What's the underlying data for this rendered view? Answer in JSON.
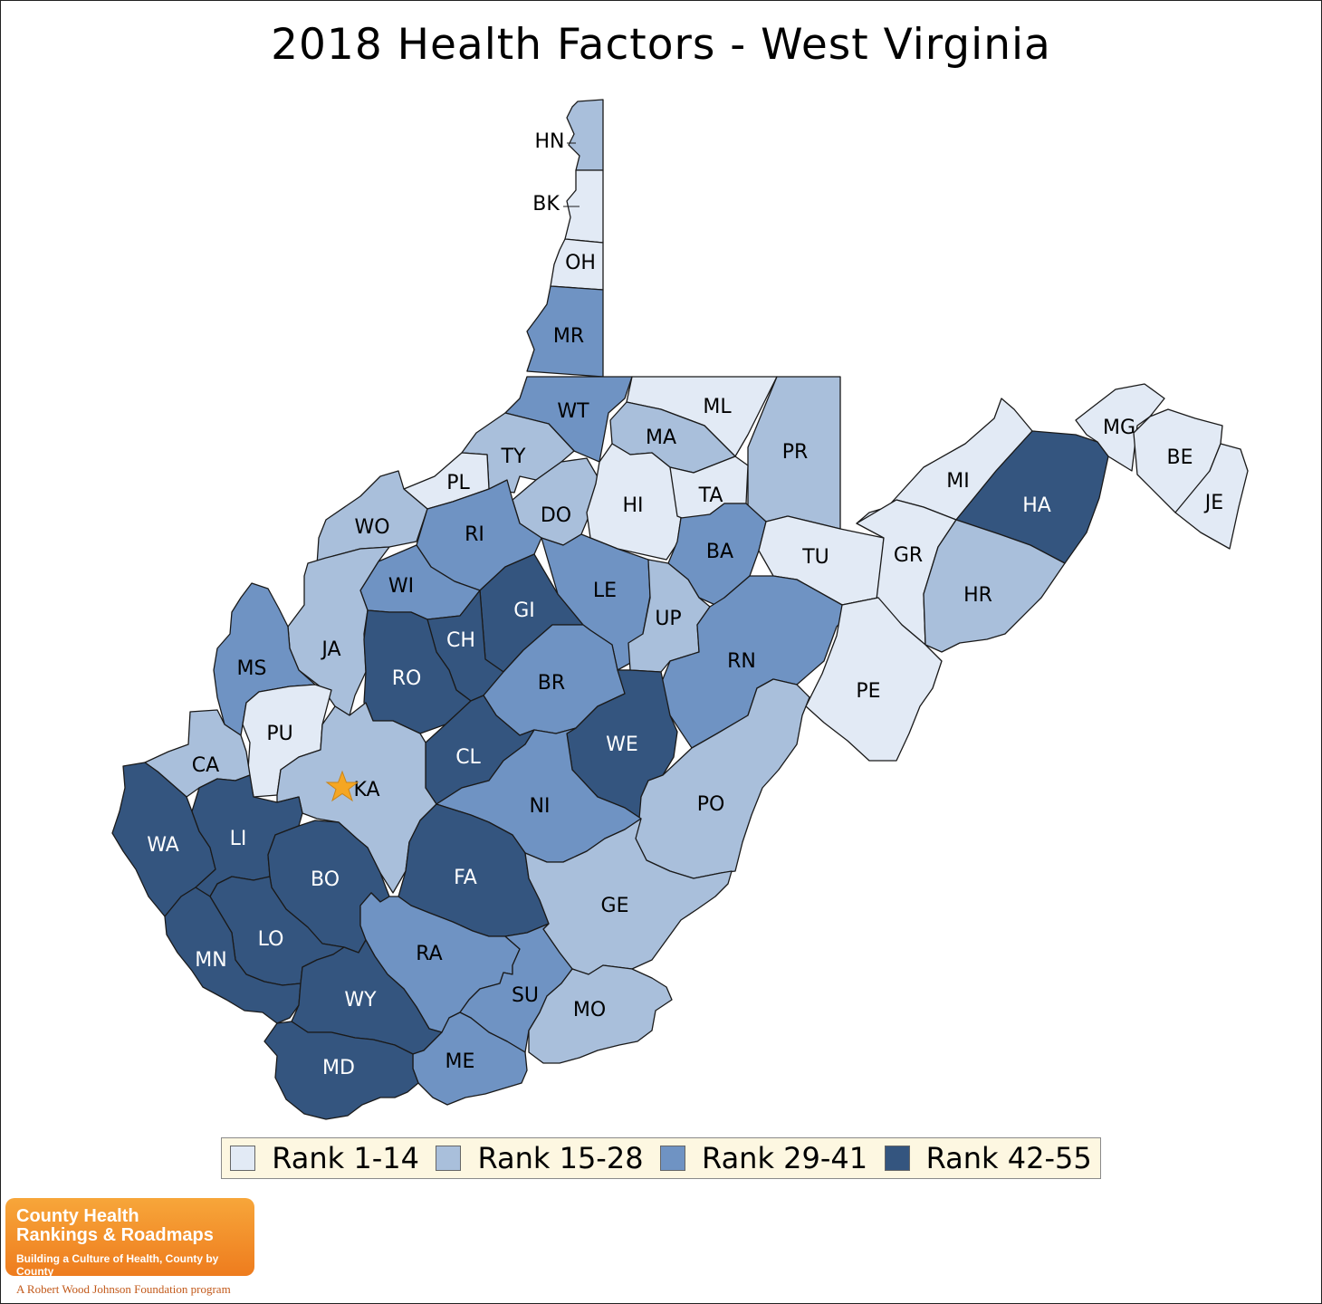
{
  "title": "2018 Health Factors - West Virginia",
  "colors": {
    "rank_1_14": "#e2eaf5",
    "rank_15_28": "#a9bfdb",
    "rank_29_41": "#6f93c3",
    "rank_42_55": "#34557f",
    "star": "#f5a623",
    "legend_bg": "#fdf7e1"
  },
  "legend": [
    {
      "label": "Rank 1-14",
      "class": "rank_1_14"
    },
    {
      "label": "Rank 15-28",
      "class": "rank_15_28"
    },
    {
      "label": "Rank 29-41",
      "class": "rank_29_41"
    },
    {
      "label": "Rank 42-55",
      "class": "rank_42_55"
    }
  ],
  "counties": [
    {
      "abbr": "HN",
      "rank_class": "rank_15_28"
    },
    {
      "abbr": "BK",
      "rank_class": "rank_1_14"
    },
    {
      "abbr": "OH",
      "rank_class": "rank_1_14"
    },
    {
      "abbr": "MR",
      "rank_class": "rank_29_41"
    },
    {
      "abbr": "WT",
      "rank_class": "rank_29_41"
    },
    {
      "abbr": "ML",
      "rank_class": "rank_1_14"
    },
    {
      "abbr": "MA",
      "rank_class": "rank_15_28"
    },
    {
      "abbr": "PR",
      "rank_class": "rank_15_28"
    },
    {
      "abbr": "TY",
      "rank_class": "rank_15_28"
    },
    {
      "abbr": "PL",
      "rank_class": "rank_1_14"
    },
    {
      "abbr": "DO",
      "rank_class": "rank_15_28"
    },
    {
      "abbr": "HI",
      "rank_class": "rank_1_14"
    },
    {
      "abbr": "TA",
      "rank_class": "rank_1_14"
    },
    {
      "abbr": "MG",
      "rank_class": "rank_1_14"
    },
    {
      "abbr": "BE",
      "rank_class": "rank_1_14"
    },
    {
      "abbr": "JE",
      "rank_class": "rank_1_14"
    },
    {
      "abbr": "MI",
      "rank_class": "rank_1_14"
    },
    {
      "abbr": "HA",
      "rank_class": "rank_42_55"
    },
    {
      "abbr": "WO",
      "rank_class": "rank_15_28"
    },
    {
      "abbr": "RI",
      "rank_class": "rank_29_41"
    },
    {
      "abbr": "BA",
      "rank_class": "rank_29_41"
    },
    {
      "abbr": "TU",
      "rank_class": "rank_1_14"
    },
    {
      "abbr": "GR",
      "rank_class": "rank_1_14"
    },
    {
      "abbr": "HR",
      "rank_class": "rank_15_28"
    },
    {
      "abbr": "WI",
      "rank_class": "rank_29_41"
    },
    {
      "abbr": "GI",
      "rank_class": "rank_42_55"
    },
    {
      "abbr": "LE",
      "rank_class": "rank_29_41"
    },
    {
      "abbr": "UP",
      "rank_class": "rank_15_28"
    },
    {
      "abbr": "CH",
      "rank_class": "rank_42_55"
    },
    {
      "abbr": "JA",
      "rank_class": "rank_15_28"
    },
    {
      "abbr": "MS",
      "rank_class": "rank_29_41"
    },
    {
      "abbr": "RN",
      "rank_class": "rank_29_41"
    },
    {
      "abbr": "RO",
      "rank_class": "rank_42_55"
    },
    {
      "abbr": "BR",
      "rank_class": "rank_29_41"
    },
    {
      "abbr": "PE",
      "rank_class": "rank_1_14"
    },
    {
      "abbr": "PU",
      "rank_class": "rank_1_14"
    },
    {
      "abbr": "WE",
      "rank_class": "rank_42_55"
    },
    {
      "abbr": "CL",
      "rank_class": "rank_42_55"
    },
    {
      "abbr": "CA",
      "rank_class": "rank_15_28"
    },
    {
      "abbr": "KA",
      "rank_class": "rank_15_28"
    },
    {
      "abbr": "PO",
      "rank_class": "rank_15_28"
    },
    {
      "abbr": "NI",
      "rank_class": "rank_29_41"
    },
    {
      "abbr": "WA",
      "rank_class": "rank_42_55"
    },
    {
      "abbr": "LI",
      "rank_class": "rank_42_55"
    },
    {
      "abbr": "BO",
      "rank_class": "rank_42_55"
    },
    {
      "abbr": "FA",
      "rank_class": "rank_42_55"
    },
    {
      "abbr": "GE",
      "rank_class": "rank_15_28"
    },
    {
      "abbr": "LO",
      "rank_class": "rank_42_55"
    },
    {
      "abbr": "MN",
      "rank_class": "rank_42_55"
    },
    {
      "abbr": "RA",
      "rank_class": "rank_29_41"
    },
    {
      "abbr": "WY",
      "rank_class": "rank_42_55"
    },
    {
      "abbr": "SU",
      "rank_class": "rank_29_41"
    },
    {
      "abbr": "MO",
      "rank_class": "rank_15_28"
    },
    {
      "abbr": "ME",
      "rank_class": "rank_29_41"
    },
    {
      "abbr": "MD",
      "rank_class": "rank_42_55"
    }
  ],
  "logo": {
    "line1": "County Health",
    "line2": "Rankings & Roadmaps",
    "tagline": "Building a Culture of Health, County by County",
    "foundation": "A Robert Wood Johnson Foundation program"
  }
}
